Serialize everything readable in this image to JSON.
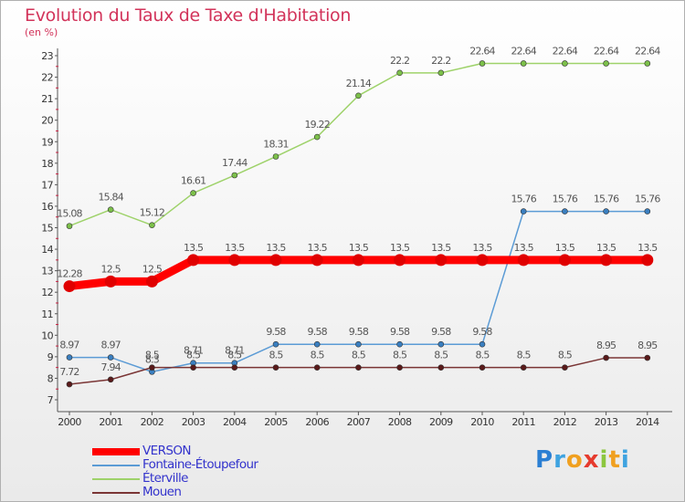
{
  "chart_data": {
    "type": "line",
    "title": "Evolution du Taux de Taxe d'Habitation",
    "xlabel": "",
    "ylabel": "(en %)",
    "x": [
      "2000",
      "2001",
      "2002",
      "2003",
      "2004",
      "2005",
      "2006",
      "2007",
      "2008",
      "2009",
      "2010",
      "2011",
      "2012",
      "2013",
      "2014"
    ],
    "ylim": [
      7,
      23
    ],
    "yticks": [
      7,
      8,
      9,
      10,
      11,
      12,
      13,
      14,
      15,
      16,
      17,
      18,
      19,
      20,
      21,
      22,
      23
    ],
    "grid": false,
    "legend_position": "bottom-left",
    "series": [
      {
        "name": "Éterville",
        "color": "#9ed26a",
        "point_color": "#7cc04a",
        "values": [
          15.08,
          15.84,
          15.12,
          16.61,
          17.44,
          18.31,
          19.22,
          21.14,
          22.2,
          22.2,
          22.64,
          22.64,
          22.64,
          22.64,
          22.64
        ],
        "labels": [
          "15.08",
          "15.84",
          "15.12",
          "16.61",
          "17.44",
          "18.31",
          "19.22",
          "21.14",
          "22.2",
          "22.2",
          "22.64",
          "22.64",
          "22.64",
          "22.64",
          "22.64"
        ]
      },
      {
        "name": "Fontaine-Étoupefour",
        "color": "#5b9bd5",
        "point_color": "#3a7fc0",
        "values": [
          8.97,
          8.97,
          8.3,
          8.71,
          8.71,
          9.58,
          9.58,
          9.58,
          9.58,
          9.58,
          9.58,
          15.76,
          15.76,
          15.76,
          15.76
        ],
        "labels": [
          "8.97",
          "8.97",
          "8.3",
          "8.71",
          "8.71",
          "9.58",
          "9.58",
          "9.58",
          "9.58",
          "9.58",
          "9.58",
          "15.76",
          "15.76",
          "15.76",
          "15.76"
        ]
      },
      {
        "name": "Mouen",
        "color": "#7a3535",
        "point_color": "#5a1a1a",
        "values": [
          7.72,
          7.94,
          8.5,
          8.5,
          8.5,
          8.5,
          8.5,
          8.5,
          8.5,
          8.5,
          8.5,
          8.5,
          8.5,
          8.95,
          8.95
        ],
        "labels": [
          "7.72",
          "7.94",
          "8.5",
          "8.5",
          "8.5",
          "8.5",
          "8.5",
          "8.5",
          "8.5",
          "8.5",
          "8.5",
          "8.5",
          "8.5",
          "8.95",
          "8.95"
        ]
      },
      {
        "name": "VERSON",
        "color": "#ff0000",
        "point_color": "#e00000",
        "values": [
          12.28,
          12.5,
          12.5,
          13.5,
          13.5,
          13.5,
          13.5,
          13.5,
          13.5,
          13.5,
          13.5,
          13.5,
          13.5,
          13.5,
          13.5
        ],
        "labels": [
          "12.28",
          "12.5",
          "12.5",
          "13.5",
          "13.5",
          "13.5",
          "13.5",
          "13.5",
          "13.5",
          "13.5",
          "13.5",
          "13.5",
          "13.5",
          "13.5",
          "13.5"
        ]
      }
    ],
    "legend_order": [
      "VERSON",
      "Fontaine-Étoupefour",
      "Éterville",
      "Mouen"
    ]
  },
  "logo": {
    "letters": [
      "P",
      "r",
      "o",
      "x",
      "i",
      "t",
      "i"
    ],
    "colors": [
      "#2b7fd3",
      "#3fa3e0",
      "#f0a020",
      "#e63b2e",
      "#8cc63f",
      "#f0a020",
      "#3fa3e0"
    ]
  },
  "colors": {
    "title": "#d2335a",
    "legend_text": "#3333cc",
    "axis": "#555555",
    "tick_mark": "#cc2244"
  }
}
